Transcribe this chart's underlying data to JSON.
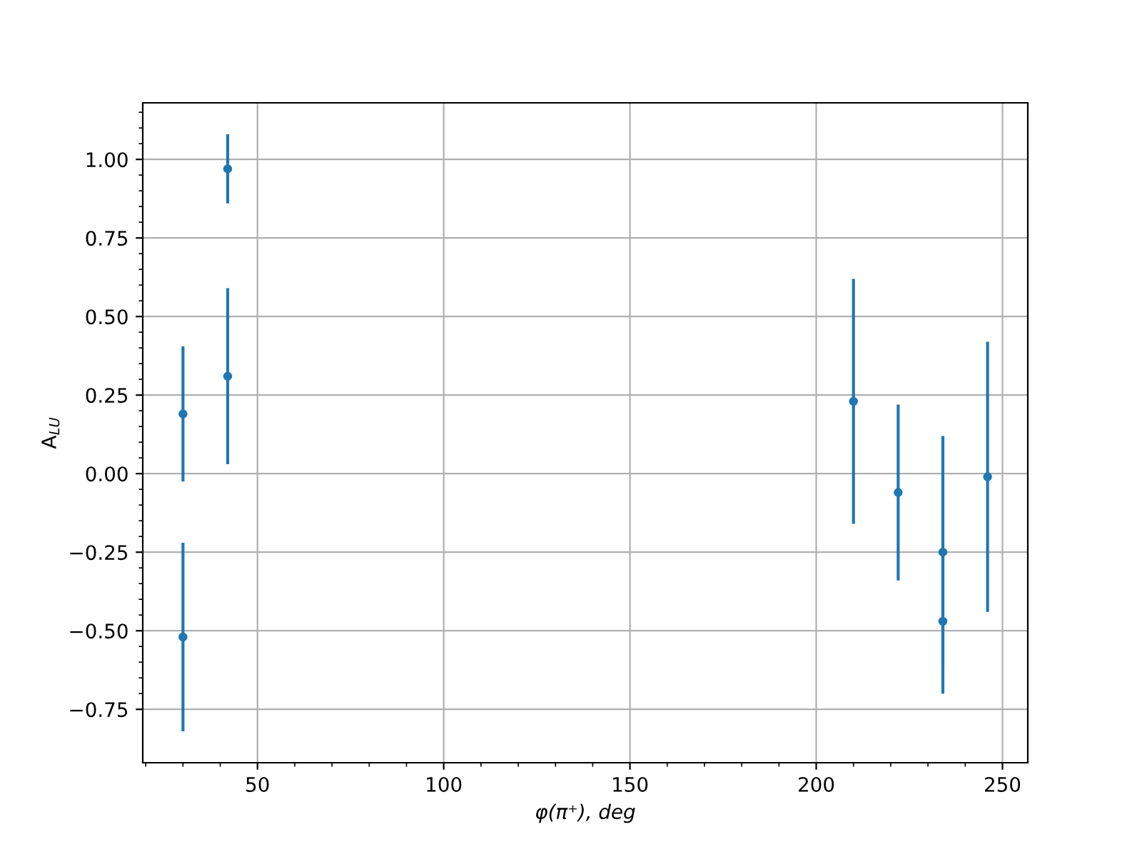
{
  "chart_data": {
    "type": "scatter",
    "xlabel": "φ(π⁺), deg",
    "ylabel": "A$_{LU}$",
    "x": [
      30,
      30,
      42,
      42,
      210,
      222,
      234,
      234,
      246
    ],
    "series": [
      {
        "color": "#1f77b4",
        "values": [
          0.19,
          -0.52,
          0.97,
          0.31,
          0.23,
          -0.06,
          -0.25,
          -0.47,
          -0.01
        ],
        "errors": [
          0.215,
          0.3,
          0.11,
          0.28,
          0.39,
          0.28,
          0.37,
          0.23,
          0.43
        ]
      }
    ],
    "marker": "circle",
    "grid": true,
    "xlim": [
      19.2,
      256.8
    ],
    "ylim": [
      -0.92,
      1.18
    ],
    "xticks": [
      {
        "value": 20,
        "label": null
      },
      {
        "value": 30,
        "label": null
      },
      {
        "value": 40,
        "label": null
      },
      50,
      {
        "value": 60,
        "label": null
      },
      {
        "value": 70,
        "label": null
      },
      {
        "value": 80,
        "label": null
      },
      {
        "value": 90,
        "label": null
      },
      100,
      {
        "value": 110,
        "label": null
      },
      {
        "value": 120,
        "label": null
      },
      {
        "value": 130,
        "label": null
      },
      {
        "value": 140,
        "label": null
      },
      150,
      {
        "value": 160,
        "label": null
      },
      {
        "value": 170,
        "label": null
      },
      {
        "value": 180,
        "label": null
      },
      {
        "value": 190,
        "label": null
      },
      200,
      {
        "value": 210,
        "label": null
      },
      {
        "value": 220,
        "label": null
      },
      {
        "value": 230,
        "label": null
      },
      {
        "value": 240,
        "label": null
      },
      250
    ],
    "yticks": [
      {
        "value": -0.75,
        "label": "−0.75"
      },
      {
        "value": -0.7,
        "label": null
      },
      {
        "value": -0.65,
        "label": null
      },
      {
        "value": -0.6,
        "label": null
      },
      {
        "value": -0.55,
        "label": null
      },
      {
        "value": -0.5,
        "label": "−0.50"
      },
      {
        "value": -0.45,
        "label": null
      },
      {
        "value": -0.4,
        "label": null
      },
      {
        "value": -0.35,
        "label": null
      },
      {
        "value": -0.3,
        "label": null
      },
      {
        "value": -0.25,
        "label": "−0.25"
      },
      {
        "value": -0.2,
        "label": null
      },
      {
        "value": -0.15,
        "label": null
      },
      {
        "value": -0.1,
        "label": null
      },
      {
        "value": -0.05,
        "label": null
      },
      {
        "value": 0,
        "label": "0.00"
      },
      {
        "value": 0.05,
        "label": null
      },
      {
        "value": 0.1,
        "label": null
      },
      {
        "value": 0.15,
        "label": null
      },
      {
        "value": 0.2,
        "label": null
      },
      {
        "value": 0.25,
        "label": "0.25"
      },
      {
        "value": 0.3,
        "label": null
      },
      {
        "value": 0.35,
        "label": null
      },
      {
        "value": 0.4,
        "label": null
      },
      {
        "value": 0.45,
        "label": null
      },
      {
        "value": 0.5,
        "label": "0.50"
      },
      {
        "value": 0.55,
        "label": null
      },
      {
        "value": 0.6,
        "label": null
      },
      {
        "value": 0.65,
        "label": null
      },
      {
        "value": 0.7,
        "label": null
      },
      {
        "value": 0.75,
        "label": "0.75"
      },
      {
        "value": 0.8,
        "label": null
      },
      {
        "value": 0.85,
        "label": null
      },
      {
        "value": 0.9,
        "label": null
      },
      {
        "value": 0.95,
        "label": null
      },
      {
        "value": 1.0,
        "label": "1.00"
      },
      {
        "value": 1.05,
        "label": null
      },
      {
        "value": 1.1,
        "label": null
      },
      {
        "value": 1.15,
        "label": null
      }
    ]
  }
}
